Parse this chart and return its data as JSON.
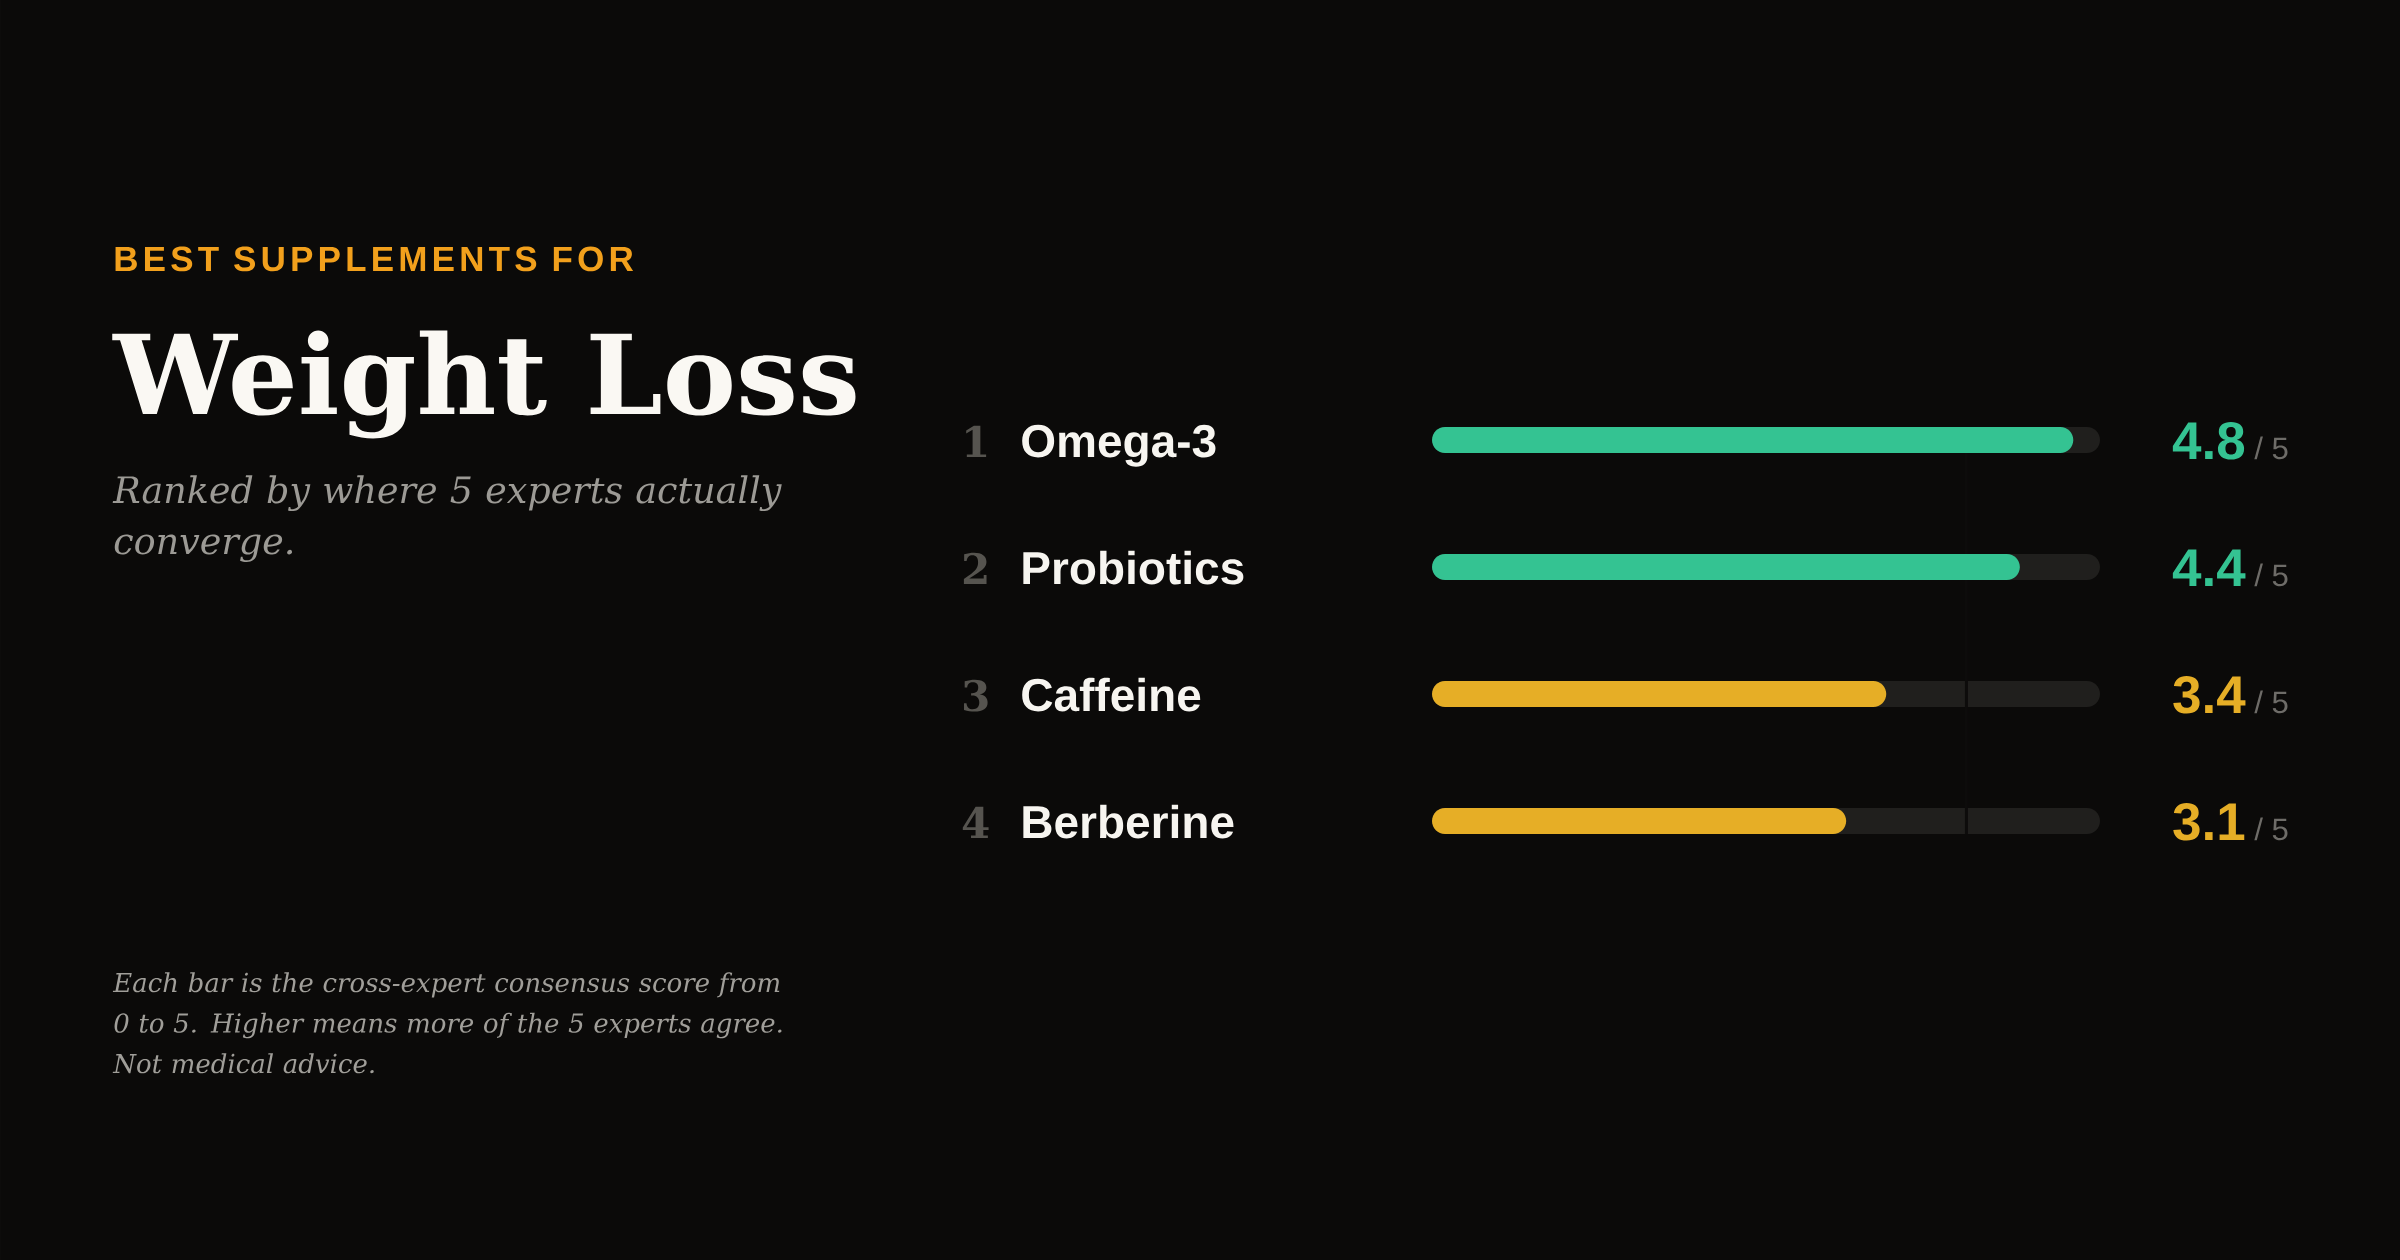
{
  "chart_data": {
    "type": "bar",
    "orientation": "horizontal",
    "title": "Weight Loss",
    "subtitle": "Ranked by where 5 experts actually converge.",
    "annotations": [
      "BEST SUPPLEMENTS FOR",
      "Each bar is the cross-expert consensus score from 0 to 5. Higher means more of the 5 experts agree. Not medical advice."
    ],
    "categories": [
      "1 **Omega-3**",
      "2 **Probiotics**",
      "3 **Caffeine**",
      "4 **Berberine**"
    ],
    "values": [
      4.8,
      4.4,
      3.4,
      3.1
    ],
    "colors": [
      "#34c392",
      "#34c392",
      "#e6ae26",
      "#e6ae26"
    ],
    "value_labels": [
      "**4.8** / 5",
      "**4.4** / 5",
      "**3.4** / 5",
      "**3.1** / 5"
    ],
    "xlim": [
      0,
      5
    ],
    "ref_lines": [
      {
        "axis": "x",
        "value": 4,
        "color": "#0d0c0b"
      }
    ]
  }
}
